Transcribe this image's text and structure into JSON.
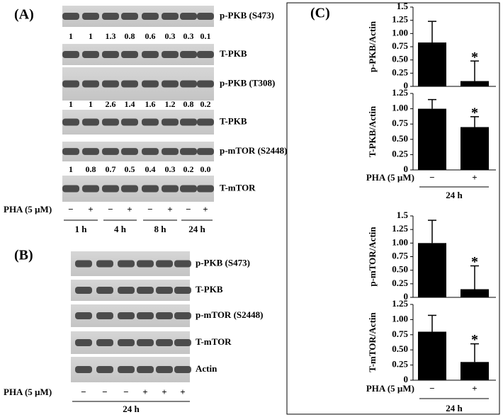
{
  "panel_a": {
    "label": "(A)",
    "blots": [
      {
        "name": "p-PKB (S473)",
        "quantification": [
          "1",
          "1",
          "1.3",
          "0.8",
          "0.6",
          "0.3",
          "0.3",
          "0.1"
        ]
      },
      {
        "name": "T-PKB"
      },
      {
        "name": "p-PKB (T308)",
        "quantification": [
          "1",
          "1",
          "2.6",
          "1.4",
          "1.6",
          "1.2",
          "0.8",
          "0.2"
        ]
      },
      {
        "name": "T-PKB"
      },
      {
        "name": "p-mTOR (S2448)",
        "quantification": [
          "1",
          "0.8",
          "0.7",
          "0.5",
          "0.4",
          "0.3",
          "0.2",
          "0.0"
        ]
      },
      {
        "name": "T-mTOR"
      }
    ],
    "treatment_label": "PHA (5 µM)",
    "conditions": [
      "−",
      "+",
      "−",
      "+",
      "−",
      "+",
      "−",
      "+"
    ],
    "times": [
      "1 h",
      "4 h",
      "8 h",
      "24 h"
    ]
  },
  "panel_b": {
    "label": "(B)",
    "blots": [
      "p-PKB (S473)",
      "T-PKB",
      "p-mTOR (S2448)",
      "T-mTOR",
      "Actin"
    ],
    "treatment_label": "PHA (5 µM)",
    "conditions": [
      "−",
      "−",
      "−",
      "+",
      "+",
      "+"
    ],
    "time": "24 h"
  },
  "panel_c": {
    "label": "(C)",
    "groups": [
      {
        "treatment_label": "PHA (5 µM)",
        "conditions": [
          "−",
          "+"
        ],
        "time": "24 h"
      },
      {
        "treatment_label": "PHA (5 µM)",
        "conditions": [
          "−",
          "+"
        ],
        "time": "24 h"
      }
    ]
  },
  "chart_data": [
    {
      "type": "bar",
      "ylabel": "p-PKB/Actin",
      "values": [
        0.83,
        0.1
      ],
      "errors": [
        0.4,
        0.38
      ],
      "significance_labels": [
        null,
        "*"
      ],
      "color": "#000000",
      "ylim": [
        0,
        1.5
      ],
      "yticks": [
        0,
        {
          "value": 0.25,
          "label": "0.25"
        },
        {
          "value": 0.5,
          "label": "0.50"
        },
        {
          "value": 0.75,
          "label": "0.75"
        },
        {
          "value": 1,
          "label": "1.00"
        },
        {
          "value": 1.25,
          "label": "1.25"
        },
        1.5
      ]
    },
    {
      "type": "bar",
      "ylabel": "T-PKB/Actin",
      "values": [
        1.0,
        0.7
      ],
      "errors": [
        0.15,
        0.17
      ],
      "significance_labels": [
        null,
        "*"
      ],
      "color": "#000000",
      "ylim": [
        0,
        1.25
      ],
      "yticks": [
        0,
        {
          "value": 0.25,
          "label": "0.25"
        },
        {
          "value": 0.5,
          "label": "0.50"
        },
        {
          "value": 0.75,
          "label": "0.75"
        },
        {
          "value": 1,
          "label": "1.00"
        },
        {
          "value": 1.25,
          "label": "1.25"
        }
      ]
    },
    {
      "type": "bar",
      "ylabel": "p-mTOR/Actin",
      "values": [
        1.0,
        0.15
      ],
      "errors": [
        0.42,
        0.43
      ],
      "significance_labels": [
        null,
        "*"
      ],
      "color": "#000000",
      "ylim": [
        0,
        1.5
      ],
      "yticks": [
        0,
        {
          "value": 0.25,
          "label": "0.25"
        },
        {
          "value": 0.5,
          "label": "0.50"
        },
        {
          "value": 0.75,
          "label": "0.75"
        },
        {
          "value": 1,
          "label": "1.00"
        },
        {
          "value": 1.25,
          "label": "1.25"
        },
        1.5
      ]
    },
    {
      "type": "bar",
      "ylabel": "T-mTOR/Actin",
      "values": [
        0.8,
        0.3
      ],
      "errors": [
        0.27,
        0.3
      ],
      "significance_labels": [
        null,
        "*"
      ],
      "color": "#000000",
      "ylim": [
        0,
        1.25
      ],
      "yticks": [
        0,
        {
          "value": 0.25,
          "label": "0.25"
        },
        {
          "value": 0.5,
          "label": "0.50"
        },
        {
          "value": 0.75,
          "label": "0.75"
        },
        {
          "value": 1,
          "label": "1.00"
        },
        {
          "value": 1.25,
          "label": "1.25"
        }
      ]
    }
  ]
}
